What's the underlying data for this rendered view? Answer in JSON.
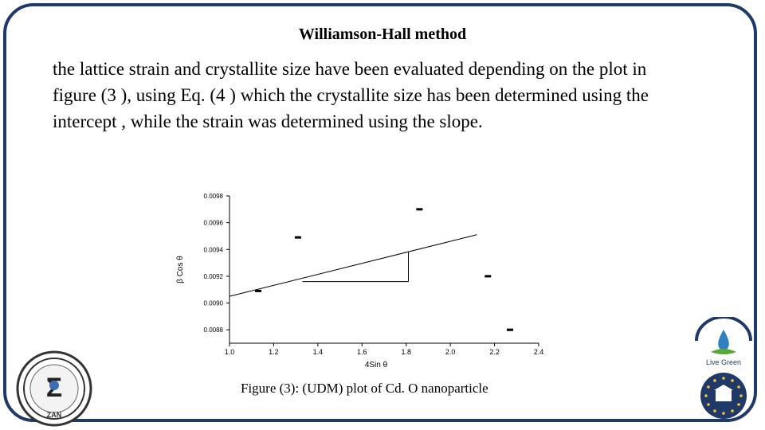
{
  "slide": {
    "title": "Williamson-Hall method",
    "body": "the lattice strain and crystallite size have been evaluated depending on the plot in figure (3 ), using Eq. (4 ) which the crystallite size has been determined using the intercept , while the strain was determined using the slope.",
    "caption": "Figure (3): (UDM) plot of Cd. O nanoparticle",
    "colors": {
      "frame": "#1f3a68",
      "text": "#000000"
    }
  },
  "logos": {
    "left": {
      "icon": "conference-emblem-icon",
      "text": "ZAN"
    },
    "right_top": {
      "icon": "live-green-icon",
      "text": "Live Green"
    },
    "right_bottom": {
      "icon": "eu-stars-building-icon"
    }
  },
  "chart_data": {
    "type": "scatter",
    "xlabel": "4Sin θ",
    "ylabel": "β Cos θ",
    "xlim": [
      1.0,
      2.4
    ],
    "ylim": [
      0.0087,
      0.0098
    ],
    "x_ticks": [
      1.0,
      1.2,
      1.4,
      1.6,
      1.8,
      2.0,
      2.2,
      2.4
    ],
    "y_ticks": [
      0.0088,
      0.009,
      0.0092,
      0.0094,
      0.0096,
      0.0098
    ],
    "x_tick_labels": [
      "1.0",
      "1.2",
      "1.4",
      "1.6",
      "1.8",
      "2.0",
      "2.2",
      "2.4"
    ],
    "y_tick_labels": [
      "0.0088",
      "0.0090",
      "0.0092",
      "0.0094",
      "0.0096",
      "0.0098"
    ],
    "points": [
      {
        "x": 1.13,
        "y": 0.00909
      },
      {
        "x": 1.31,
        "y": 0.00949
      },
      {
        "x": 1.86,
        "y": 0.0097
      },
      {
        "x": 2.17,
        "y": 0.0092
      },
      {
        "x": 2.27,
        "y": 0.0088
      }
    ],
    "fit_line": {
      "x": [
        1.0,
        2.12
      ],
      "y": [
        0.00905,
        0.00951
      ]
    },
    "slope_triangle": {
      "x1": 1.33,
      "x2": 1.81,
      "y1": 0.00916,
      "y2": 0.00938
    },
    "grid": false
  }
}
